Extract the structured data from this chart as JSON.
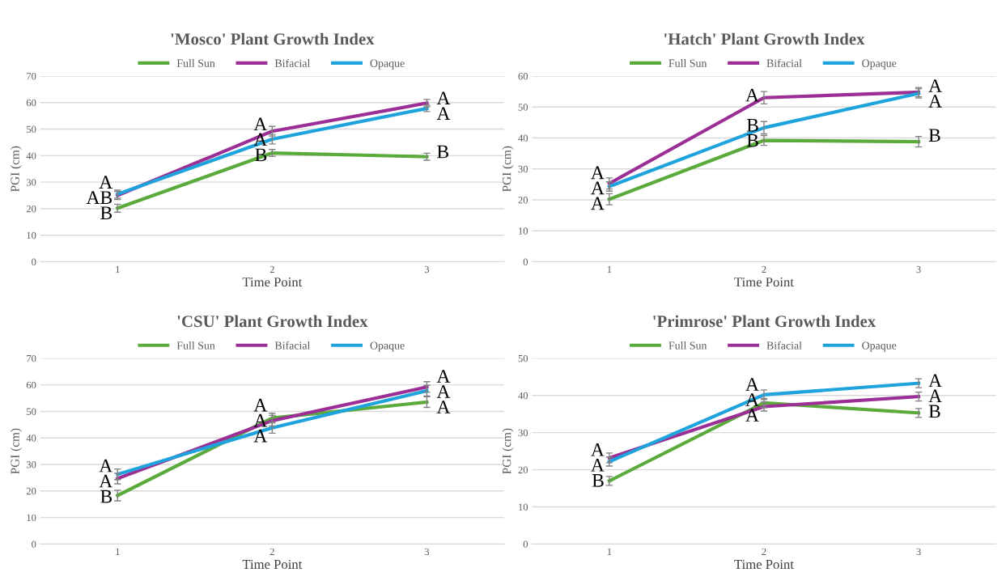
{
  "chart_data": [
    {
      "type": "line",
      "title": "'Mosco' Plant Growth Index",
      "xlabel": "Time Point",
      "ylabel": "PGI (cm)",
      "categories": [
        "1",
        "2",
        "3"
      ],
      "ylim": [
        0,
        70
      ],
      "yticks": [
        0,
        10,
        20,
        30,
        40,
        50,
        60,
        70
      ],
      "grid": "y",
      "legend": "top",
      "marker": "none",
      "line_style": "solid",
      "series": [
        {
          "name": "Full Sun",
          "color": "#5aab3b",
          "values": [
            20.2,
            41,
            39.6
          ],
          "errors": [
            1.5,
            1.3,
            1.3
          ]
        },
        {
          "name": "Bifacial",
          "color": "#9b2f96",
          "values": [
            25,
            49.2,
            59.8
          ],
          "errors": [
            1.5,
            1.8,
            1.4
          ]
        },
        {
          "name": "Opaque",
          "color": "#1fa3dc",
          "values": [
            25.5,
            46.2,
            57.8
          ],
          "errors": [
            1.5,
            1.8,
            1.2
          ]
        }
      ],
      "annotations": [
        {
          "text": "A",
          "x": "1",
          "y": 25.5
        },
        {
          "text": "AB",
          "x": "1",
          "y": 25
        },
        {
          "text": "B",
          "x": "1",
          "y": 20.2
        },
        {
          "text": "A",
          "x": "2",
          "y": 49.2
        },
        {
          "text": "A",
          "x": "2",
          "y": 46.2
        },
        {
          "text": "B",
          "x": "2",
          "y": 41
        },
        {
          "text": "A",
          "x": "3",
          "y": 59.8
        },
        {
          "text": "A",
          "x": "3",
          "y": 57.8
        },
        {
          "text": "B",
          "x": "3",
          "y": 39.6
        }
      ]
    },
    {
      "type": "line",
      "title": "'Hatch' Plant Growth Index",
      "xlabel": "Time Point",
      "ylabel": "PGI (cm)",
      "categories": [
        "1",
        "2",
        "3"
      ],
      "ylim": [
        0,
        60
      ],
      "yticks": [
        0,
        10,
        20,
        30,
        40,
        50,
        60
      ],
      "grid": "y",
      "legend": "top",
      "marker": "none",
      "line_style": "solid",
      "series": [
        {
          "name": "Full Sun",
          "color": "#5aab3b",
          "values": [
            20.2,
            39.2,
            38.8
          ],
          "errors": [
            1.8,
            1.6,
            1.7
          ]
        },
        {
          "name": "Bifacial",
          "color": "#9b2f96",
          "values": [
            25.3,
            53,
            54.8
          ],
          "errors": [
            1.8,
            2,
            1.5
          ]
        },
        {
          "name": "Opaque",
          "color": "#1fa3dc",
          "values": [
            24.3,
            43.3,
            54.4
          ],
          "errors": [
            1.5,
            2,
            1.5
          ]
        }
      ],
      "annotations": [
        {
          "text": "A",
          "x": "1",
          "y": 25.3
        },
        {
          "text": "A",
          "x": "1",
          "y": 24.3
        },
        {
          "text": "A",
          "x": "1",
          "y": 20.2
        },
        {
          "text": "A",
          "x": "2",
          "y": 53
        },
        {
          "text": "B",
          "x": "2",
          "y": 43.3
        },
        {
          "text": "B",
          "x": "2",
          "y": 39.2
        },
        {
          "text": "A",
          "x": "3",
          "y": 54.8
        },
        {
          "text": "A",
          "x": "3",
          "y": 54.4
        },
        {
          "text": "B",
          "x": "3",
          "y": 38.8
        }
      ]
    },
    {
      "type": "line",
      "title": "'CSU' Plant Growth Index",
      "xlabel": "Time Point",
      "ylabel": "PGI (cm)",
      "categories": [
        "1",
        "2",
        "3"
      ],
      "ylim": [
        0,
        70
      ],
      "yticks": [
        0,
        10,
        20,
        30,
        40,
        50,
        60,
        70
      ],
      "grid": "y",
      "legend": "top",
      "marker": "none",
      "line_style": "solid",
      "series": [
        {
          "name": "Full Sun",
          "color": "#5aab3b",
          "values": [
            18.3,
            47.5,
            53.5
          ],
          "errors": [
            2,
            1.8,
            2
          ]
        },
        {
          "name": "Bifacial",
          "color": "#9b2f96",
          "values": [
            24.7,
            46.5,
            59.2
          ],
          "errors": [
            2,
            2,
            2
          ]
        },
        {
          "name": "Opaque",
          "color": "#1fa3dc",
          "values": [
            26.3,
            43.8,
            57.8
          ],
          "errors": [
            2,
            2,
            2
          ]
        }
      ],
      "annotations": [
        {
          "text": "A",
          "x": "1",
          "y": 26.3
        },
        {
          "text": "A",
          "x": "1",
          "y": 24.7
        },
        {
          "text": "B",
          "x": "1",
          "y": 18.3
        },
        {
          "text": "A",
          "x": "2",
          "y": 47.5
        },
        {
          "text": "A",
          "x": "2",
          "y": 46.5
        },
        {
          "text": "A",
          "x": "2",
          "y": 43.8
        },
        {
          "text": "A",
          "x": "3",
          "y": 59.2
        },
        {
          "text": "A",
          "x": "3",
          "y": 57.8
        },
        {
          "text": "A",
          "x": "3",
          "y": 53.5
        }
      ]
    },
    {
      "type": "line",
      "title": "'Primrose' Plant Growth Index",
      "xlabel": "Time Point",
      "ylabel": "PGI (cm)",
      "categories": [
        "1",
        "2",
        "3"
      ],
      "ylim": [
        0,
        50
      ],
      "yticks": [
        0,
        10,
        20,
        30,
        40,
        50
      ],
      "grid": "y",
      "legend": "top",
      "marker": "none",
      "line_style": "solid",
      "series": [
        {
          "name": "Full Sun",
          "color": "#5aab3b",
          "values": [
            17,
            38,
            35.3
          ],
          "errors": [
            1.2,
            1.2,
            1.2
          ]
        },
        {
          "name": "Bifacial",
          "color": "#9b2f96",
          "values": [
            23.2,
            37,
            39.7
          ],
          "errors": [
            1.3,
            1.2,
            1.2
          ]
        },
        {
          "name": "Opaque",
          "color": "#1fa3dc",
          "values": [
            22.2,
            40.2,
            43.3
          ],
          "errors": [
            1.2,
            1.3,
            1.2
          ]
        }
      ],
      "annotations": [
        {
          "text": "A",
          "x": "1",
          "y": 23.2
        },
        {
          "text": "A",
          "x": "1",
          "y": 22.2
        },
        {
          "text": "B",
          "x": "1",
          "y": 17
        },
        {
          "text": "A",
          "x": "2",
          "y": 40.2
        },
        {
          "text": "A",
          "x": "2",
          "y": 38
        },
        {
          "text": "A",
          "x": "2",
          "y": 37
        },
        {
          "text": "A",
          "x": "3",
          "y": 43.3
        },
        {
          "text": "A",
          "x": "3",
          "y": 39.7
        },
        {
          "text": "B",
          "x": "3",
          "y": 35.3
        }
      ]
    }
  ]
}
